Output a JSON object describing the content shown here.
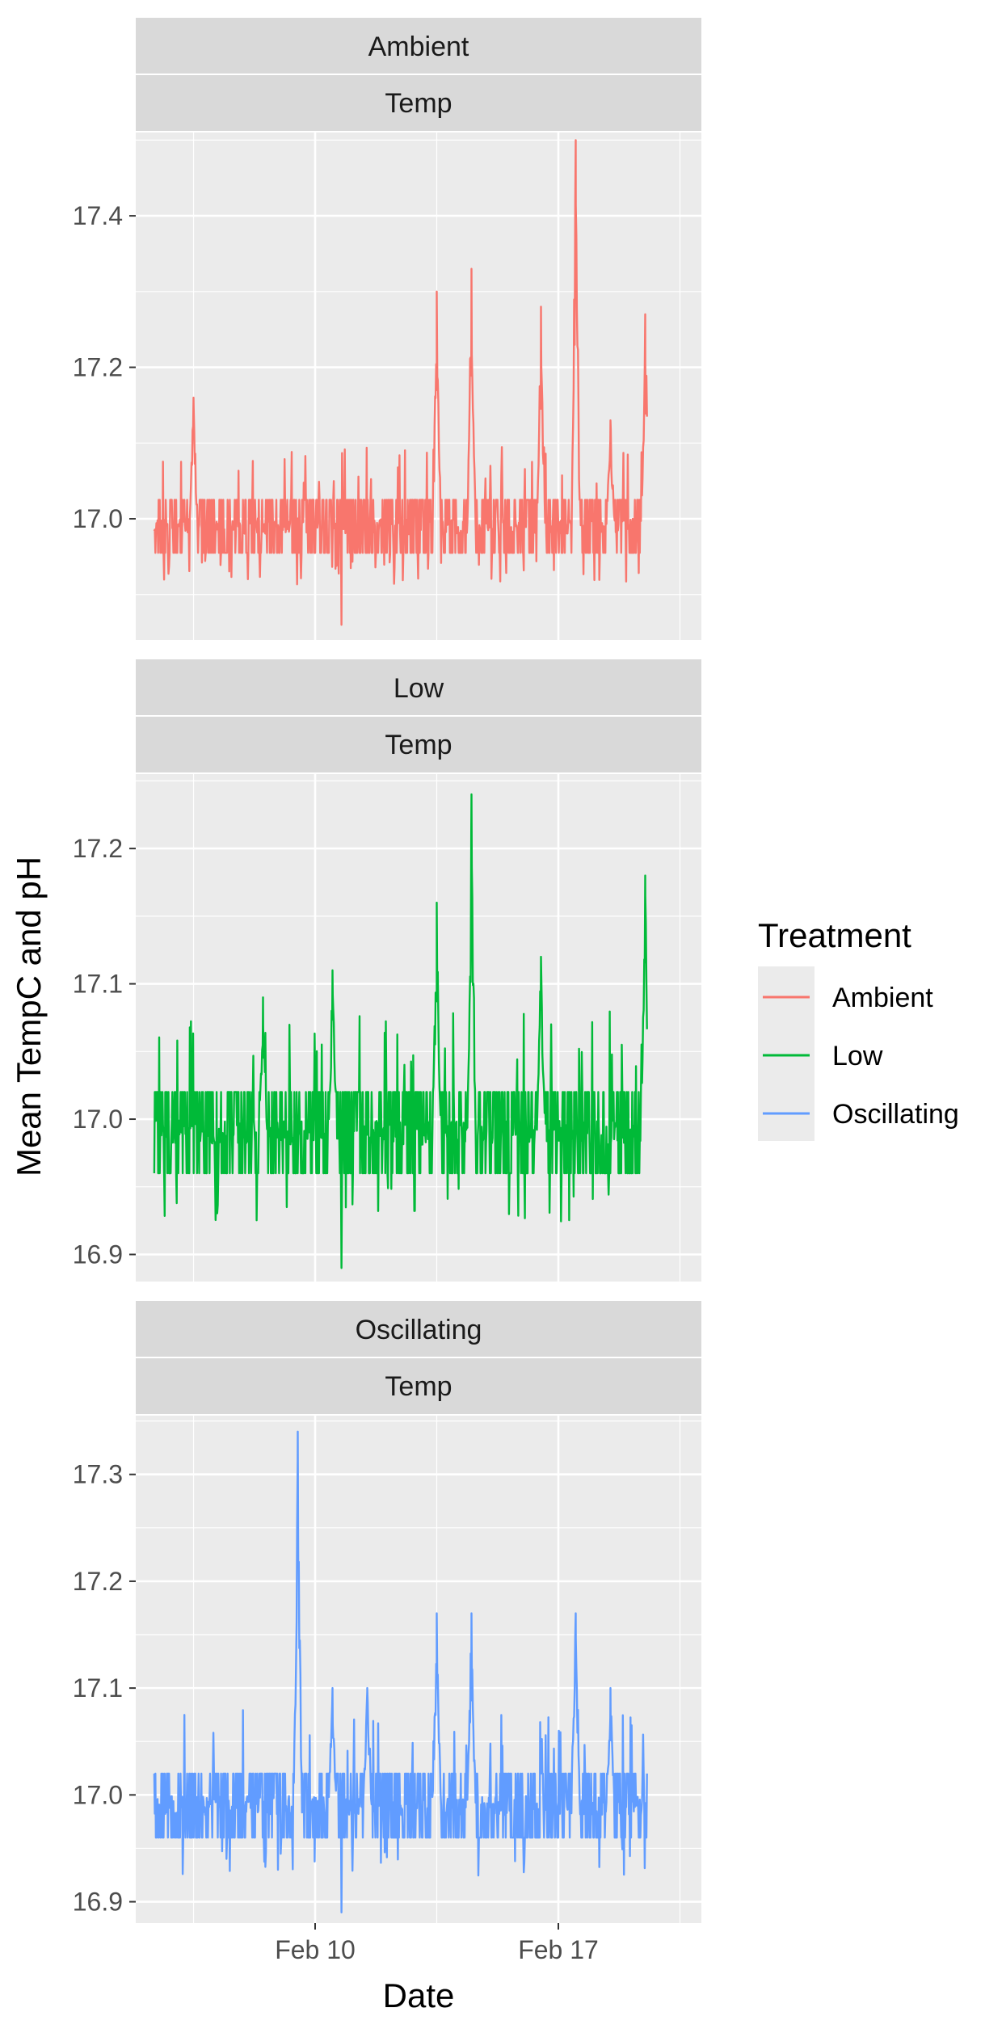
{
  "chart_data": {
    "type": "line",
    "xlabel": "Date",
    "ylabel": "Mean TempC and pH",
    "x_ticks": [
      "Feb 10",
      "Feb 17"
    ],
    "x_tick_dates": [
      "2021-02-10",
      "2021-02-17"
    ],
    "xlim": [
      "2021-02-05",
      "2021-02-20"
    ],
    "grid": true,
    "legend": {
      "title": "Treatment",
      "placement": "right",
      "entries": [
        {
          "label": "Ambient",
          "color": "#F8766D"
        },
        {
          "label": "Low",
          "color": "#00BA38"
        },
        {
          "label": "Oscillating",
          "color": "#619CFF"
        }
      ]
    },
    "panels": [
      {
        "strip": [
          "Ambient",
          "Temp"
        ],
        "series_name": "Ambient",
        "color": "#F8766D",
        "ylim": [
          16.84,
          17.51
        ],
        "y_ticks": [
          17.0,
          17.2,
          17.4
        ],
        "y_tick_labels": [
          "17.0",
          "17.2",
          "17.4"
        ],
        "baseline": 16.99,
        "amp": 0.035,
        "spikes": [
          {
            "x": "2021-02-06",
            "y": 17.16
          },
          {
            "x": "2021-02-13",
            "y": 17.3
          },
          {
            "x": "2021-02-14",
            "y": 17.33
          },
          {
            "x": "2021-02-16",
            "y": 17.28
          },
          {
            "x": "2021-02-17",
            "y": 17.5
          },
          {
            "x": "2021-02-18",
            "y": 17.13
          },
          {
            "x": "2021-02-19",
            "y": 17.27
          }
        ],
        "min_value": 16.86
      },
      {
        "strip": [
          "Low",
          "Temp"
        ],
        "series_name": "Low",
        "color": "#00BA38",
        "ylim": [
          16.88,
          17.255
        ],
        "y_ticks": [
          16.9,
          17.0,
          17.1,
          17.2
        ],
        "y_tick_labels": [
          "16.9",
          "17.0",
          "17.1",
          "17.2"
        ],
        "baseline": 16.99,
        "amp": 0.03,
        "spikes": [
          {
            "x": "2021-02-08",
            "y": 17.09
          },
          {
            "x": "2021-02-10",
            "y": 17.11
          },
          {
            "x": "2021-02-13",
            "y": 17.16
          },
          {
            "x": "2021-02-14",
            "y": 17.24
          },
          {
            "x": "2021-02-16",
            "y": 17.12
          },
          {
            "x": "2021-02-19",
            "y": 17.18
          }
        ],
        "min_value": 16.89
      },
      {
        "strip": [
          "Oscillating",
          "Temp"
        ],
        "series_name": "Oscillating",
        "color": "#619CFF",
        "ylim": [
          16.88,
          17.355
        ],
        "y_ticks": [
          16.9,
          17.0,
          17.1,
          17.2,
          17.3
        ],
        "y_tick_labels": [
          "16.9",
          "17.0",
          "17.1",
          "17.2",
          "17.3"
        ],
        "baseline": 16.99,
        "amp": 0.03,
        "spikes": [
          {
            "x": "2021-02-09",
            "y": 17.34
          },
          {
            "x": "2021-02-10",
            "y": 17.1
          },
          {
            "x": "2021-02-11",
            "y": 17.1
          },
          {
            "x": "2021-02-13",
            "y": 17.17
          },
          {
            "x": "2021-02-14",
            "y": 17.17
          },
          {
            "x": "2021-02-17",
            "y": 17.17
          },
          {
            "x": "2021-02-18",
            "y": 17.1
          }
        ],
        "min_value": 16.89
      }
    ]
  }
}
